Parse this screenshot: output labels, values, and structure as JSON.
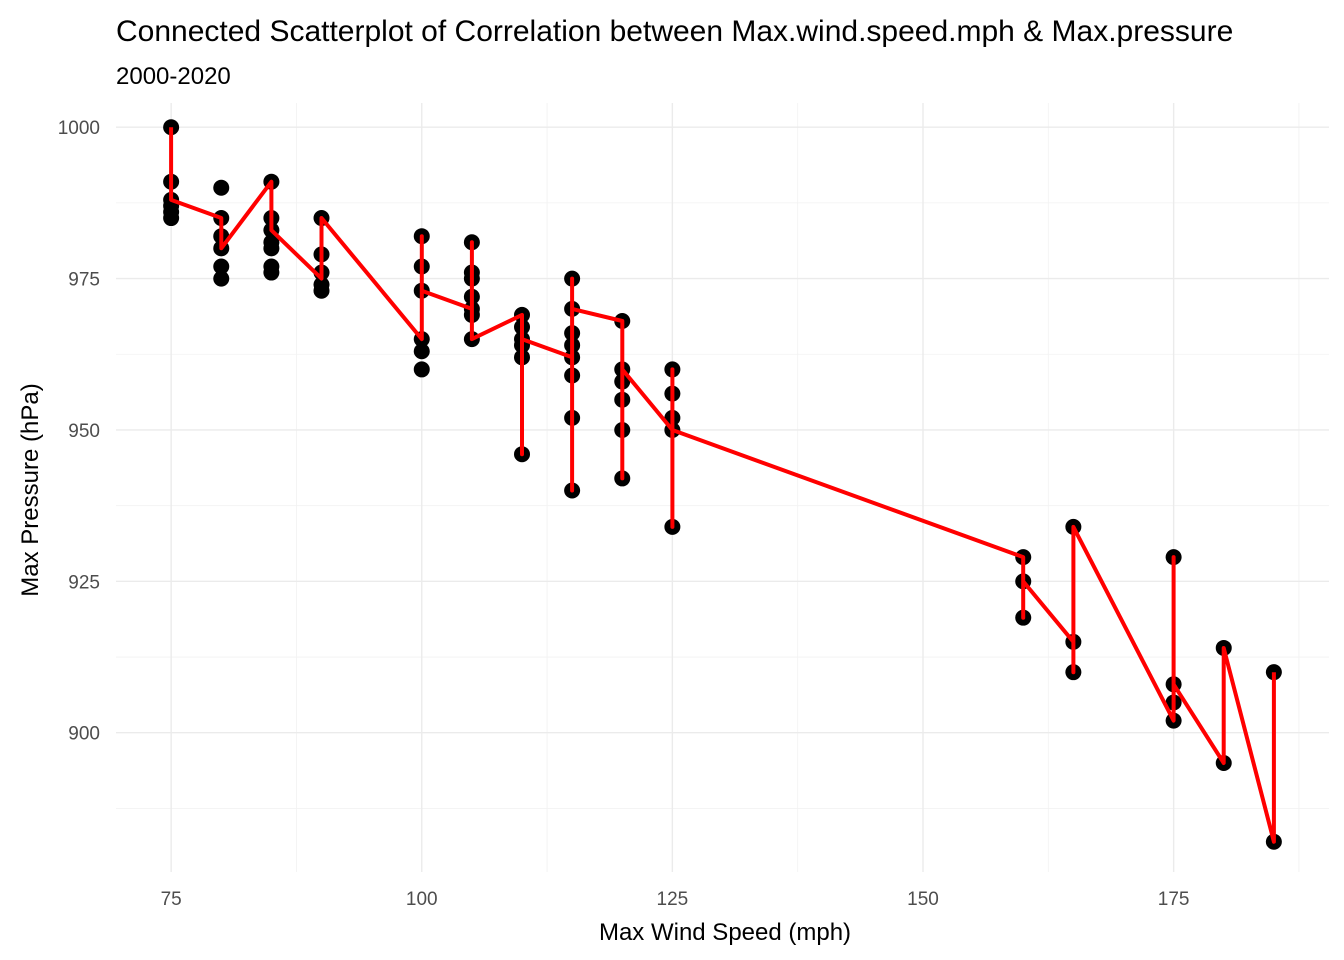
{
  "chart_data": {
    "type": "scatter",
    "title": "Connected Scatterplot of Correlation between Max.wind.speed.mph & Max.pressure",
    "subtitle": "2000-2020",
    "xlabel": "Max Wind Speed (mph)",
    "ylabel": "Max Pressure (hPa)",
    "xlim": [
      69.5,
      190.5
    ],
    "ylim": [
      877,
      1004
    ],
    "x_ticks": [
      75,
      100,
      125,
      150,
      175
    ],
    "y_ticks": [
      900,
      925,
      950,
      975,
      1000
    ],
    "grid": true,
    "legend": "none",
    "colors": {
      "points": "#000000",
      "line": "#ff0000"
    },
    "points": [
      {
        "x": 75,
        "y": 1000
      },
      {
        "x": 75,
        "y": 991
      },
      {
        "x": 75,
        "y": 988
      },
      {
        "x": 75,
        "y": 987
      },
      {
        "x": 75,
        "y": 986
      },
      {
        "x": 75,
        "y": 985
      },
      {
        "x": 80,
        "y": 990
      },
      {
        "x": 80,
        "y": 985
      },
      {
        "x": 80,
        "y": 982
      },
      {
        "x": 80,
        "y": 980
      },
      {
        "x": 80,
        "y": 977
      },
      {
        "x": 80,
        "y": 975
      },
      {
        "x": 85,
        "y": 991
      },
      {
        "x": 85,
        "y": 985
      },
      {
        "x": 85,
        "y": 983
      },
      {
        "x": 85,
        "y": 981
      },
      {
        "x": 85,
        "y": 980
      },
      {
        "x": 85,
        "y": 977
      },
      {
        "x": 85,
        "y": 976
      },
      {
        "x": 90,
        "y": 985
      },
      {
        "x": 90,
        "y": 979
      },
      {
        "x": 90,
        "y": 976
      },
      {
        "x": 90,
        "y": 974
      },
      {
        "x": 90,
        "y": 973
      },
      {
        "x": 100,
        "y": 982
      },
      {
        "x": 100,
        "y": 977
      },
      {
        "x": 100,
        "y": 973
      },
      {
        "x": 100,
        "y": 965
      },
      {
        "x": 100,
        "y": 963
      },
      {
        "x": 100,
        "y": 960
      },
      {
        "x": 105,
        "y": 981
      },
      {
        "x": 105,
        "y": 976
      },
      {
        "x": 105,
        "y": 975
      },
      {
        "x": 105,
        "y": 972
      },
      {
        "x": 105,
        "y": 970
      },
      {
        "x": 105,
        "y": 969
      },
      {
        "x": 105,
        "y": 965
      },
      {
        "x": 110,
        "y": 969
      },
      {
        "x": 110,
        "y": 967
      },
      {
        "x": 110,
        "y": 965
      },
      {
        "x": 110,
        "y": 964
      },
      {
        "x": 110,
        "y": 962
      },
      {
        "x": 110,
        "y": 946
      },
      {
        "x": 115,
        "y": 975
      },
      {
        "x": 115,
        "y": 970
      },
      {
        "x": 115,
        "y": 966
      },
      {
        "x": 115,
        "y": 964
      },
      {
        "x": 115,
        "y": 962
      },
      {
        "x": 115,
        "y": 959
      },
      {
        "x": 115,
        "y": 952
      },
      {
        "x": 115,
        "y": 940
      },
      {
        "x": 120,
        "y": 968
      },
      {
        "x": 120,
        "y": 960
      },
      {
        "x": 120,
        "y": 958
      },
      {
        "x": 120,
        "y": 955
      },
      {
        "x": 120,
        "y": 950
      },
      {
        "x": 120,
        "y": 942
      },
      {
        "x": 125,
        "y": 960
      },
      {
        "x": 125,
        "y": 956
      },
      {
        "x": 125,
        "y": 952
      },
      {
        "x": 125,
        "y": 950
      },
      {
        "x": 125,
        "y": 934
      },
      {
        "x": 160,
        "y": 929
      },
      {
        "x": 160,
        "y": 925
      },
      {
        "x": 160,
        "y": 919
      },
      {
        "x": 165,
        "y": 934
      },
      {
        "x": 165,
        "y": 915
      },
      {
        "x": 165,
        "y": 910
      },
      {
        "x": 175,
        "y": 929
      },
      {
        "x": 175,
        "y": 908
      },
      {
        "x": 175,
        "y": 905
      },
      {
        "x": 175,
        "y": 902
      },
      {
        "x": 180,
        "y": 914
      },
      {
        "x": 180,
        "y": 895
      },
      {
        "x": 185,
        "y": 910
      },
      {
        "x": 185,
        "y": 882
      }
    ],
    "line_path": [
      {
        "x": 75,
        "y": 1000
      },
      {
        "x": 75,
        "y": 988
      },
      {
        "x": 80,
        "y": 985
      },
      {
        "x": 80,
        "y": 980
      },
      {
        "x": 85,
        "y": 991
      },
      {
        "x": 85,
        "y": 983
      },
      {
        "x": 90,
        "y": 975
      },
      {
        "x": 90,
        "y": 985
      },
      {
        "x": 100,
        "y": 965
      },
      {
        "x": 100,
        "y": 982
      },
      {
        "x": 100,
        "y": 973
      },
      {
        "x": 105,
        "y": 970
      },
      {
        "x": 105,
        "y": 981
      },
      {
        "x": 105,
        "y": 965
      },
      {
        "x": 110,
        "y": 969
      },
      {
        "x": 110,
        "y": 946
      },
      {
        "x": 110,
        "y": 965
      },
      {
        "x": 115,
        "y": 962
      },
      {
        "x": 115,
        "y": 940
      },
      {
        "x": 115,
        "y": 975
      },
      {
        "x": 115,
        "y": 970
      },
      {
        "x": 120,
        "y": 968
      },
      {
        "x": 120,
        "y": 942
      },
      {
        "x": 120,
        "y": 960
      },
      {
        "x": 125,
        "y": 950
      },
      {
        "x": 125,
        "y": 934
      },
      {
        "x": 125,
        "y": 960
      },
      {
        "x": 125,
        "y": 950
      },
      {
        "x": 160,
        "y": 929
      },
      {
        "x": 160,
        "y": 919
      },
      {
        "x": 160,
        "y": 925
      },
      {
        "x": 165,
        "y": 915
      },
      {
        "x": 165,
        "y": 910
      },
      {
        "x": 165,
        "y": 934
      },
      {
        "x": 175,
        "y": 902
      },
      {
        "x": 175,
        "y": 929
      },
      {
        "x": 175,
        "y": 908
      },
      {
        "x": 180,
        "y": 895
      },
      {
        "x": 180,
        "y": 914
      },
      {
        "x": 185,
        "y": 882
      },
      {
        "x": 185,
        "y": 910
      }
    ]
  }
}
